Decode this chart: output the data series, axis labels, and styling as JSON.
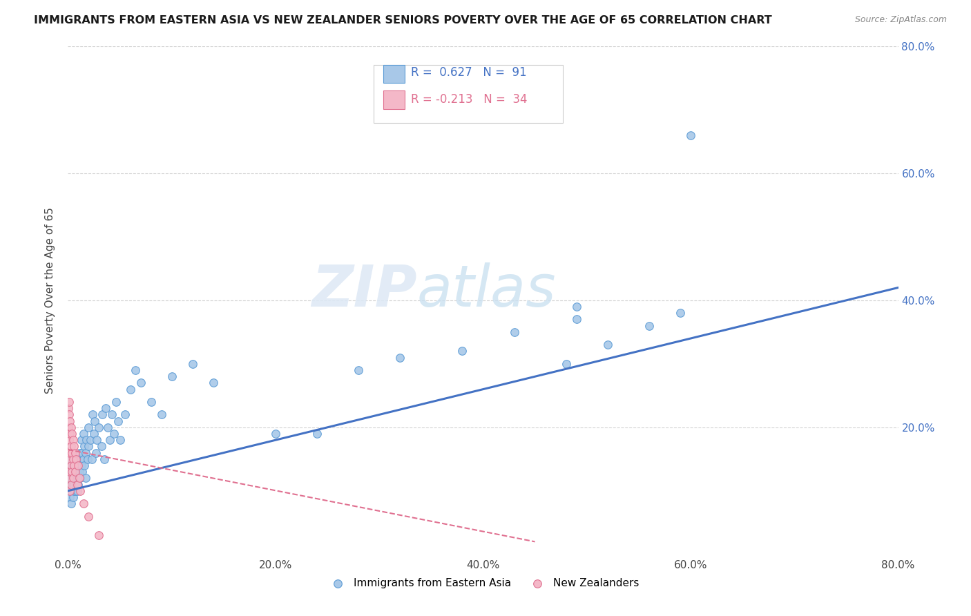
{
  "title": "IMMIGRANTS FROM EASTERN ASIA VS NEW ZEALANDER SENIORS POVERTY OVER THE AGE OF 65 CORRELATION CHART",
  "source": "Source: ZipAtlas.com",
  "ylabel_label": "Seniors Poverty Over the Age of 65",
  "legend_label1": "Immigrants from Eastern Asia",
  "legend_label2": "New Zealanders",
  "R1": 0.627,
  "N1": 91,
  "R2": -0.213,
  "N2": 34,
  "color_blue_fill": "#a8c8e8",
  "color_blue_edge": "#5b9bd5",
  "color_blue_line": "#4472C4",
  "color_blue_text": "#4472C4",
  "color_pink_fill": "#f4b8c8",
  "color_pink_edge": "#e07090",
  "color_pink_line": "#e07090",
  "color_pink_text": "#e07090",
  "watermark_zip": "ZIP",
  "watermark_atlas": "atlas",
  "xlim": [
    0.0,
    0.8
  ],
  "ylim": [
    0.0,
    0.8
  ],
  "blue_x": [
    0.001,
    0.001,
    0.002,
    0.002,
    0.002,
    0.003,
    0.003,
    0.003,
    0.003,
    0.004,
    0.004,
    0.004,
    0.004,
    0.005,
    0.005,
    0.005,
    0.005,
    0.006,
    0.006,
    0.006,
    0.006,
    0.007,
    0.007,
    0.007,
    0.008,
    0.008,
    0.008,
    0.009,
    0.009,
    0.01,
    0.01,
    0.01,
    0.011,
    0.011,
    0.012,
    0.012,
    0.013,
    0.013,
    0.014,
    0.014,
    0.015,
    0.015,
    0.016,
    0.016,
    0.017,
    0.017,
    0.018,
    0.019,
    0.02,
    0.02,
    0.022,
    0.023,
    0.024,
    0.025,
    0.026,
    0.027,
    0.028,
    0.03,
    0.032,
    0.033,
    0.035,
    0.036,
    0.038,
    0.04,
    0.042,
    0.044,
    0.046,
    0.048,
    0.05,
    0.055,
    0.06,
    0.065,
    0.07,
    0.08,
    0.09,
    0.1,
    0.12,
    0.14,
    0.2,
    0.24,
    0.28,
    0.32,
    0.38,
    0.43,
    0.48,
    0.52,
    0.56,
    0.59,
    0.49,
    0.49,
    0.6
  ],
  "blue_y": [
    0.1,
    0.13,
    0.11,
    0.14,
    0.09,
    0.12,
    0.1,
    0.15,
    0.08,
    0.11,
    0.13,
    0.1,
    0.12,
    0.14,
    0.11,
    0.09,
    0.13,
    0.1,
    0.12,
    0.15,
    0.11,
    0.13,
    0.1,
    0.14,
    0.12,
    0.15,
    0.11,
    0.13,
    0.1,
    0.14,
    0.12,
    0.11,
    0.16,
    0.13,
    0.15,
    0.12,
    0.14,
    0.18,
    0.16,
    0.13,
    0.15,
    0.19,
    0.17,
    0.14,
    0.16,
    0.12,
    0.18,
    0.15,
    0.17,
    0.2,
    0.18,
    0.15,
    0.22,
    0.19,
    0.21,
    0.16,
    0.18,
    0.2,
    0.17,
    0.22,
    0.15,
    0.23,
    0.2,
    0.18,
    0.22,
    0.19,
    0.24,
    0.21,
    0.18,
    0.22,
    0.26,
    0.29,
    0.27,
    0.24,
    0.22,
    0.28,
    0.3,
    0.27,
    0.19,
    0.19,
    0.29,
    0.31,
    0.32,
    0.35,
    0.3,
    0.33,
    0.36,
    0.38,
    0.39,
    0.37,
    0.66
  ],
  "pink_x": [
    0.0005,
    0.0005,
    0.001,
    0.001,
    0.001,
    0.001,
    0.001,
    0.002,
    0.002,
    0.002,
    0.002,
    0.002,
    0.003,
    0.003,
    0.003,
    0.003,
    0.004,
    0.004,
    0.004,
    0.005,
    0.005,
    0.005,
    0.006,
    0.006,
    0.007,
    0.007,
    0.008,
    0.009,
    0.01,
    0.011,
    0.012,
    0.015,
    0.02,
    0.03
  ],
  "pink_y": [
    0.2,
    0.23,
    0.24,
    0.22,
    0.18,
    0.15,
    0.12,
    0.21,
    0.19,
    0.16,
    0.13,
    0.1,
    0.2,
    0.17,
    0.14,
    0.11,
    0.19,
    0.16,
    0.13,
    0.18,
    0.15,
    0.12,
    0.17,
    0.14,
    0.16,
    0.13,
    0.15,
    0.11,
    0.14,
    0.12,
    0.1,
    0.08,
    0.06,
    0.03
  ],
  "blue_line_x": [
    0.0,
    0.8
  ],
  "blue_line_y": [
    0.1,
    0.42
  ],
  "pink_line_x": [
    0.0,
    0.45
  ],
  "pink_line_y": [
    0.165,
    0.02
  ]
}
